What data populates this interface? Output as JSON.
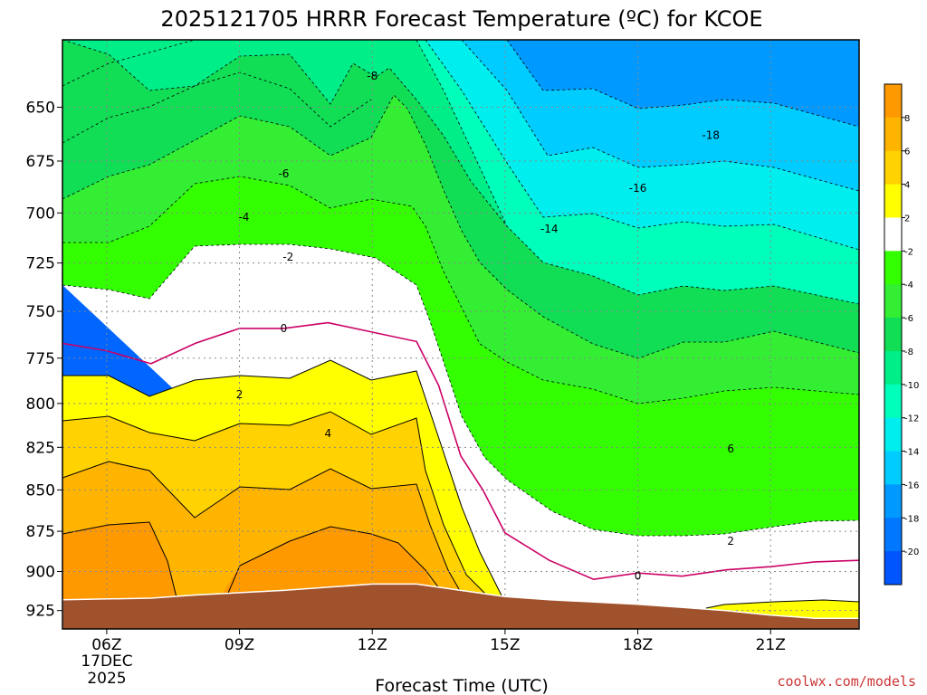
{
  "chart_data": {
    "type": "heatmap",
    "title": "2025121705 HRRR Forecast Temperature (ºC) for KCOE",
    "xlabel": "Forecast Time (UTC)",
    "x_ticks": [
      {
        "hour": 6,
        "label": "06Z"
      },
      {
        "hour": 9,
        "label": "09Z"
      },
      {
        "hour": 12,
        "label": "12Z"
      },
      {
        "hour": 15,
        "label": "15Z"
      },
      {
        "hour": 18,
        "label": "18Z"
      },
      {
        "hour": 21,
        "label": "21Z"
      }
    ],
    "date_label_line1": "17DEC",
    "date_label_line2": "2025",
    "y_ticks": [
      650,
      675,
      700,
      725,
      750,
      775,
      800,
      825,
      850,
      875,
      900,
      925
    ],
    "x_range_hours": [
      5,
      23
    ],
    "y_range_hpa": [
      620,
      937
    ],
    "pressure_axis": "log",
    "grid": true,
    "colorbar": {
      "levels": [
        -20,
        -18,
        -16,
        -14,
        -12,
        -10,
        -8,
        -6,
        -4,
        -2,
        2,
        4,
        6,
        8
      ],
      "labels": [
        "8",
        "6",
        "4",
        "2",
        "-2",
        "-4",
        "-6",
        "-8",
        "-10",
        "-12",
        "-14",
        "-16",
        "-18",
        "-20"
      ],
      "colors_top_to_bottom": [
        "#ff9900",
        "#ffb400",
        "#ffd200",
        "#ffff00",
        "#ffffff",
        "#33ff00",
        "#33ee33",
        "#11dd55",
        "#00ee88",
        "#00ffbb",
        "#00eeee",
        "#00ccff",
        "#0099ff",
        "#0077ff",
        "#0055ff"
      ]
    },
    "contour_labels": [
      {
        "text": "-18",
        "hour": 19.65,
        "p": 663
      },
      {
        "text": "-16",
        "hour": 18.0,
        "p": 688
      },
      {
        "text": "-14",
        "hour": 16.0,
        "p": 708
      },
      {
        "text": "-8",
        "hour": 12.0,
        "p": 636
      },
      {
        "text": "-6",
        "hour": 10.0,
        "p": 681
      },
      {
        "text": "-4",
        "hour": 9.1,
        "p": 702
      },
      {
        "text": "-2",
        "hour": 10.1,
        "p": 722
      },
      {
        "text": "0",
        "hour": 10.0,
        "p": 759
      },
      {
        "text": "2",
        "hour": 9.0,
        "p": 795
      },
      {
        "text": "4",
        "hour": 11.0,
        "p": 817
      },
      {
        "text": "6",
        "hour": 20.1,
        "p": 826
      },
      {
        "text": "2",
        "hour": 20.1,
        "p": 881
      },
      {
        "text": "0",
        "hour": 18.0,
        "p": 903
      }
    ],
    "zero_isotherm": [
      {
        "hour": 5,
        "p": 767
      },
      {
        "hour": 6,
        "p": 771
      },
      {
        "hour": 7,
        "p": 778
      },
      {
        "hour": 8,
        "p": 767
      },
      {
        "hour": 9,
        "p": 759
      },
      {
        "hour": 10,
        "p": 759
      },
      {
        "hour": 11,
        "p": 756
      },
      {
        "hour": 12,
        "p": 761
      },
      {
        "hour": 13,
        "p": 766
      },
      {
        "hour": 13.5,
        "p": 790
      },
      {
        "hour": 14,
        "p": 830
      },
      {
        "hour": 14.5,
        "p": 850
      },
      {
        "hour": 15,
        "p": 876
      },
      {
        "hour": 16,
        "p": 893
      },
      {
        "hour": 17,
        "p": 905
      },
      {
        "hour": 18,
        "p": 901
      },
      {
        "hour": 19,
        "p": 903
      },
      {
        "hour": 20,
        "p": 899
      },
      {
        "hour": 21,
        "p": 897
      },
      {
        "hour": 22,
        "p": 894
      },
      {
        "hour": 23,
        "p": 893
      }
    ],
    "terrain_surface_hpa": [
      {
        "hour": 5,
        "p": 918
      },
      {
        "hour": 7,
        "p": 917
      },
      {
        "hour": 8,
        "p": 915
      },
      {
        "hour": 10,
        "p": 912
      },
      {
        "hour": 11,
        "p": 910
      },
      {
        "hour": 12,
        "p": 908
      },
      {
        "hour": 13,
        "p": 908
      },
      {
        "hour": 14,
        "p": 912
      },
      {
        "hour": 15,
        "p": 916
      },
      {
        "hour": 16,
        "p": 918
      },
      {
        "hour": 18,
        "p": 921
      },
      {
        "hour": 20,
        "p": 925
      },
      {
        "hour": 21,
        "p": 928
      },
      {
        "hour": 22,
        "p": 930
      },
      {
        "hour": 23,
        "p": 930
      }
    ]
  },
  "credit": "coolwx.com/models"
}
